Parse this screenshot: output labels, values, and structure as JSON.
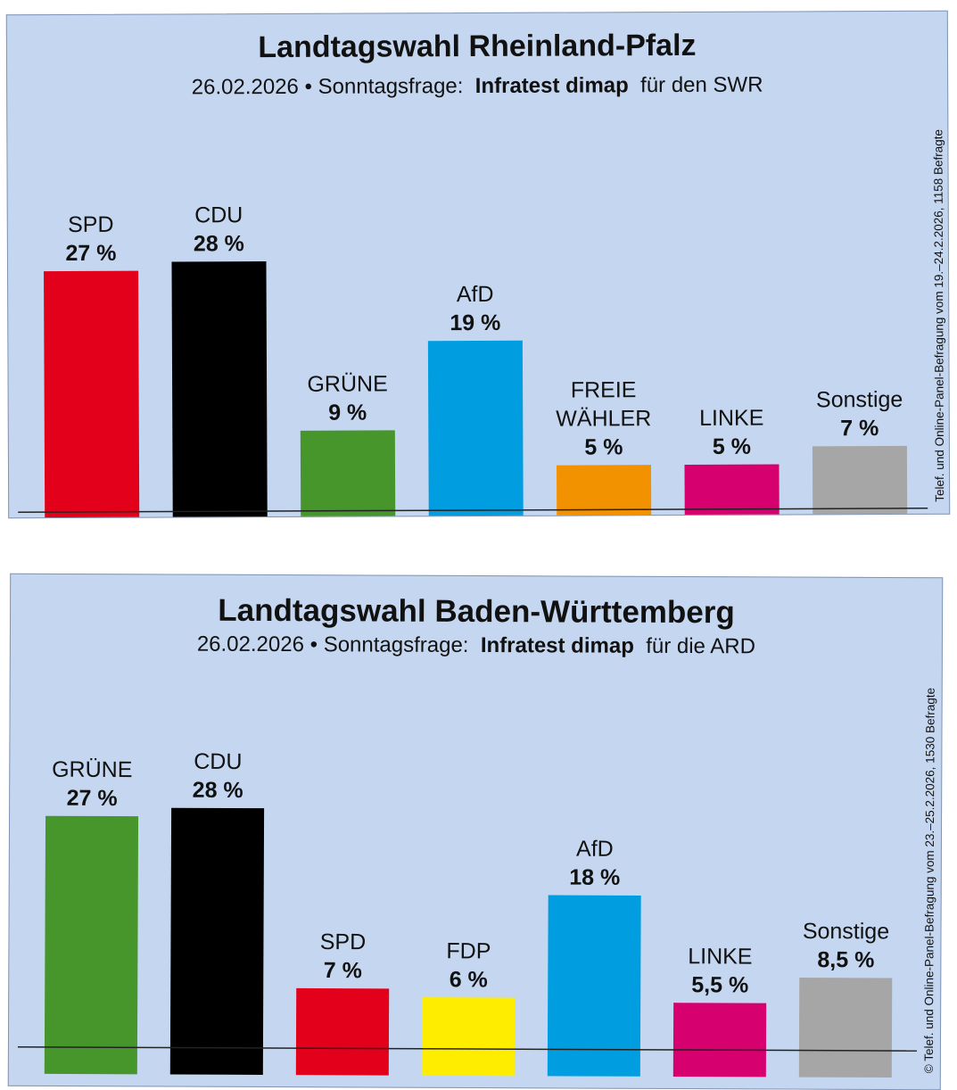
{
  "charts": [
    {
      "title": "Landtagswahl Rheinland-Pfalz",
      "subtitle": {
        "date": "26.02.2026",
        "sep": " • ",
        "label": "Sonntagsfrage:",
        "institute": "Infratest dimap",
        "client": "für den SWR"
      },
      "side_note": "Telef. und Online-Panel-Befragung vom 19.–24.2.2026, 1158 Befragte"
    },
    {
      "title": "Landtagswahl Baden-Württemberg",
      "subtitle": {
        "date": "26.02.2026",
        "sep": " • ",
        "label": "Sonntagsfrage:",
        "institute": "Infratest dimap",
        "client": "für die ARD"
      },
      "side_note": "© Telef. und Online-Panel-Befragung vom 23.–25.2.2026, 1530 Befragte"
    }
  ],
  "chart_data": [
    {
      "type": "bar",
      "title": "Landtagswahl Rheinland-Pfalz",
      "unit": "%",
      "categories": [
        "SPD",
        "CDU",
        "GRÜNE",
        "AfD",
        "FREIE WÄHLER",
        "LINKE",
        "Sonstige"
      ],
      "category_lines": [
        [
          "SPD"
        ],
        [
          "CDU"
        ],
        [
          "GRÜNE"
        ],
        [
          "AfD"
        ],
        [
          "FREIE",
          "WÄHLER"
        ],
        [
          "LINKE"
        ],
        [
          "Sonstige"
        ]
      ],
      "values": [
        27,
        28,
        9,
        19,
        5,
        5,
        7
      ],
      "value_labels": [
        "27 %",
        "28 %",
        "9 %",
        "19 %",
        "5 %",
        "5 %",
        "7 %"
      ],
      "colors": [
        "#e2001a",
        "#000000",
        "#46962b",
        "#009ee0",
        "#f39200",
        "#d6006f",
        "#a6a6a6"
      ]
    },
    {
      "type": "bar",
      "title": "Landtagswahl Baden-Württemberg",
      "unit": "%",
      "categories": [
        "GRÜNE",
        "CDU",
        "SPD",
        "FDP",
        "AfD",
        "LINKE",
        "Sonstige"
      ],
      "category_lines": [
        [
          "GRÜNE"
        ],
        [
          "CDU"
        ],
        [
          "SPD"
        ],
        [
          "FDP"
        ],
        [
          "AfD"
        ],
        [
          "LINKE"
        ],
        [
          "Sonstige"
        ]
      ],
      "values": [
        27,
        28,
        7,
        6,
        18,
        5.5,
        8.5
      ],
      "value_labels": [
        "27 %",
        "28 %",
        "7 %",
        "6 %",
        "18 %",
        "5,5 %",
        "8,5 %"
      ],
      "colors": [
        "#46962b",
        "#000000",
        "#e2001a",
        "#ffed00",
        "#009ee0",
        "#d6006f",
        "#a6a6a6"
      ]
    }
  ]
}
